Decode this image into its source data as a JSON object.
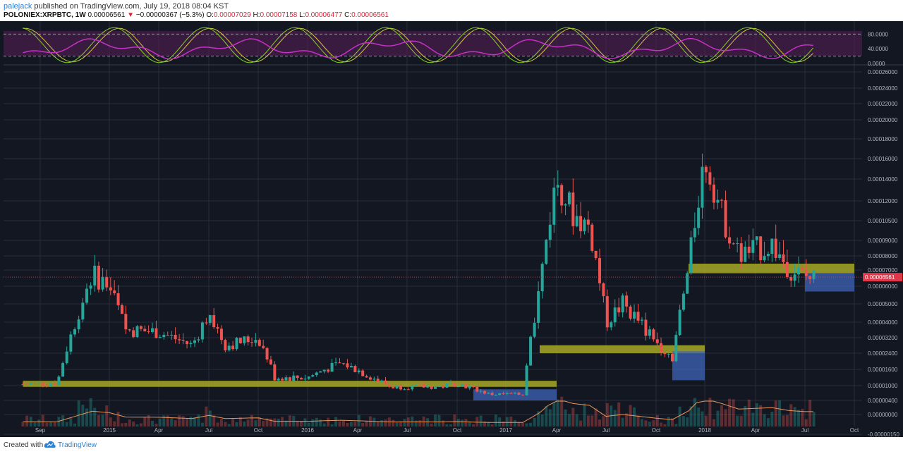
{
  "header": {
    "author": "palejack",
    "published_text": "published on TradingView.com, July 19, 2018 08:04 KST",
    "symbol": "POLONIEX:XRPBTC, 1W",
    "last": "0.00006561",
    "change_arrow": "▼",
    "change": "−0.00000367 (−5.3%)",
    "o_label": "O:",
    "o_value": "0.00007029",
    "h_label": "H:",
    "h_value": "0.00007158",
    "l_label": "L:",
    "l_value": "0.00006477",
    "c_label": "C:",
    "c_value": "0.00006561"
  },
  "footer": {
    "created_with": "Created with",
    "brand": "TradingView",
    "logo_icon": "tradingview-cloud-icon"
  },
  "colors": {
    "background": "#131722",
    "up": "#26a69a",
    "down": "#ef5350",
    "support_zone": "#a8a826",
    "target_zone": "#3d64b8",
    "rsi": "#c431c4",
    "stoch_k": "#7ed321",
    "stoch_d": "#d4c340",
    "volume_ma": "#e8955a",
    "price_line": "#e0384a"
  },
  "chart_data": [
    {
      "type": "candlestick",
      "title": "POLONIEX:XRPBTC, 1W",
      "x_tick_labels": [
        "Sep",
        "2015",
        "Apr",
        "Jul",
        "Oct",
        "2016",
        "Apr",
        "Jul",
        "Oct",
        "2017",
        "Apr",
        "Jul",
        "Oct",
        "2018",
        "Apr",
        "Jul",
        "Oct"
      ],
      "y_tick_labels": [
        "0.00026000",
        "0.00024000",
        "0.00022000",
        "0.00020000",
        "0.00018000",
        "0.00016000",
        "0.00014000",
        "0.00012000",
        "0.00010500",
        "0.00009000",
        "0.00008000",
        "0.00007000",
        "0.00006000",
        "0.00005000",
        "0.00004000",
        "0.00003200",
        "0.00002400",
        "0.00001600",
        "0.00001000",
        "0.00000400",
        "0.00000000",
        "-0.00000150"
      ],
      "current_price_label": "0.00006561",
      "approx_close_path": [
        [
          "2014-08",
          1.05e-05
        ],
        [
          "2014-10",
          1.1e-05
        ],
        [
          "2014-12",
          6.8e-05
        ],
        [
          "2015-01",
          6e-05
        ],
        [
          "2015-02",
          3.6e-05
        ],
        [
          "2015-04",
          3.5e-05
        ],
        [
          "2015-06",
          2.8e-05
        ],
        [
          "2015-07",
          4.5e-05
        ],
        [
          "2015-08",
          2.8e-05
        ],
        [
          "2015-10",
          3.2e-05
        ],
        [
          "2015-11",
          1.3e-05
        ],
        [
          "2016-01",
          1.3e-05
        ],
        [
          "2016-03",
          1.9e-05
        ],
        [
          "2016-06",
          9.5e-06
        ],
        [
          "2016-09",
          9.5e-06
        ],
        [
          "2016-10",
          1.1e-05
        ],
        [
          "2016-12",
          6.5e-06
        ],
        [
          "2017-02",
          6.5e-06
        ],
        [
          "2017-03",
          6e-05
        ],
        [
          "2017-04",
          0.00014
        ],
        [
          "2017-05",
          0.00011
        ],
        [
          "2017-06",
          0.0001
        ],
        [
          "2017-07",
          4e-05
        ],
        [
          "2017-08",
          5e-05
        ],
        [
          "2017-10",
          3e-05
        ],
        [
          "2017-11",
          2.2e-05
        ],
        [
          "2017-12",
          7e-05
        ],
        [
          "2018-01",
          0.00016
        ],
        [
          "2018-02",
          0.00011
        ],
        [
          "2018-03",
          8e-05
        ],
        [
          "2018-05",
          8.75e-05
        ],
        [
          "2018-06",
          7.2e-05
        ],
        [
          "2018-07",
          6.561e-05
        ]
      ],
      "support_zones": [
        {
          "from": "2014-08",
          "to": "2017-03",
          "low": 9.5e-06,
          "high": 1.1e-05
        },
        {
          "from": "2017-03",
          "to": "2017-12",
          "low": 2.4e-05,
          "high": 2.7e-05
        },
        {
          "from": "2017-12",
          "to": "2018-09",
          "low": 6.8e-05,
          "high": 7.3e-05
        }
      ],
      "target_zones": [
        {
          "from": "2016-11",
          "to": "2017-03",
          "low": 4e-06,
          "high": 8.5e-06
        },
        {
          "from": "2017-11",
          "to": "2017-12",
          "low": 1.2e-05,
          "high": 2.5e-05
        },
        {
          "from": "2018-07",
          "to": "2018-09",
          "low": 5.7e-05,
          "high": 6.8e-05
        }
      ]
    },
    {
      "type": "line",
      "title": "",
      "y_tick_labels": [
        "80.0000",
        "40.0000",
        "0.0000"
      ],
      "ylim": [
        0,
        100
      ],
      "bands": [
        80,
        20
      ]
    }
  ]
}
